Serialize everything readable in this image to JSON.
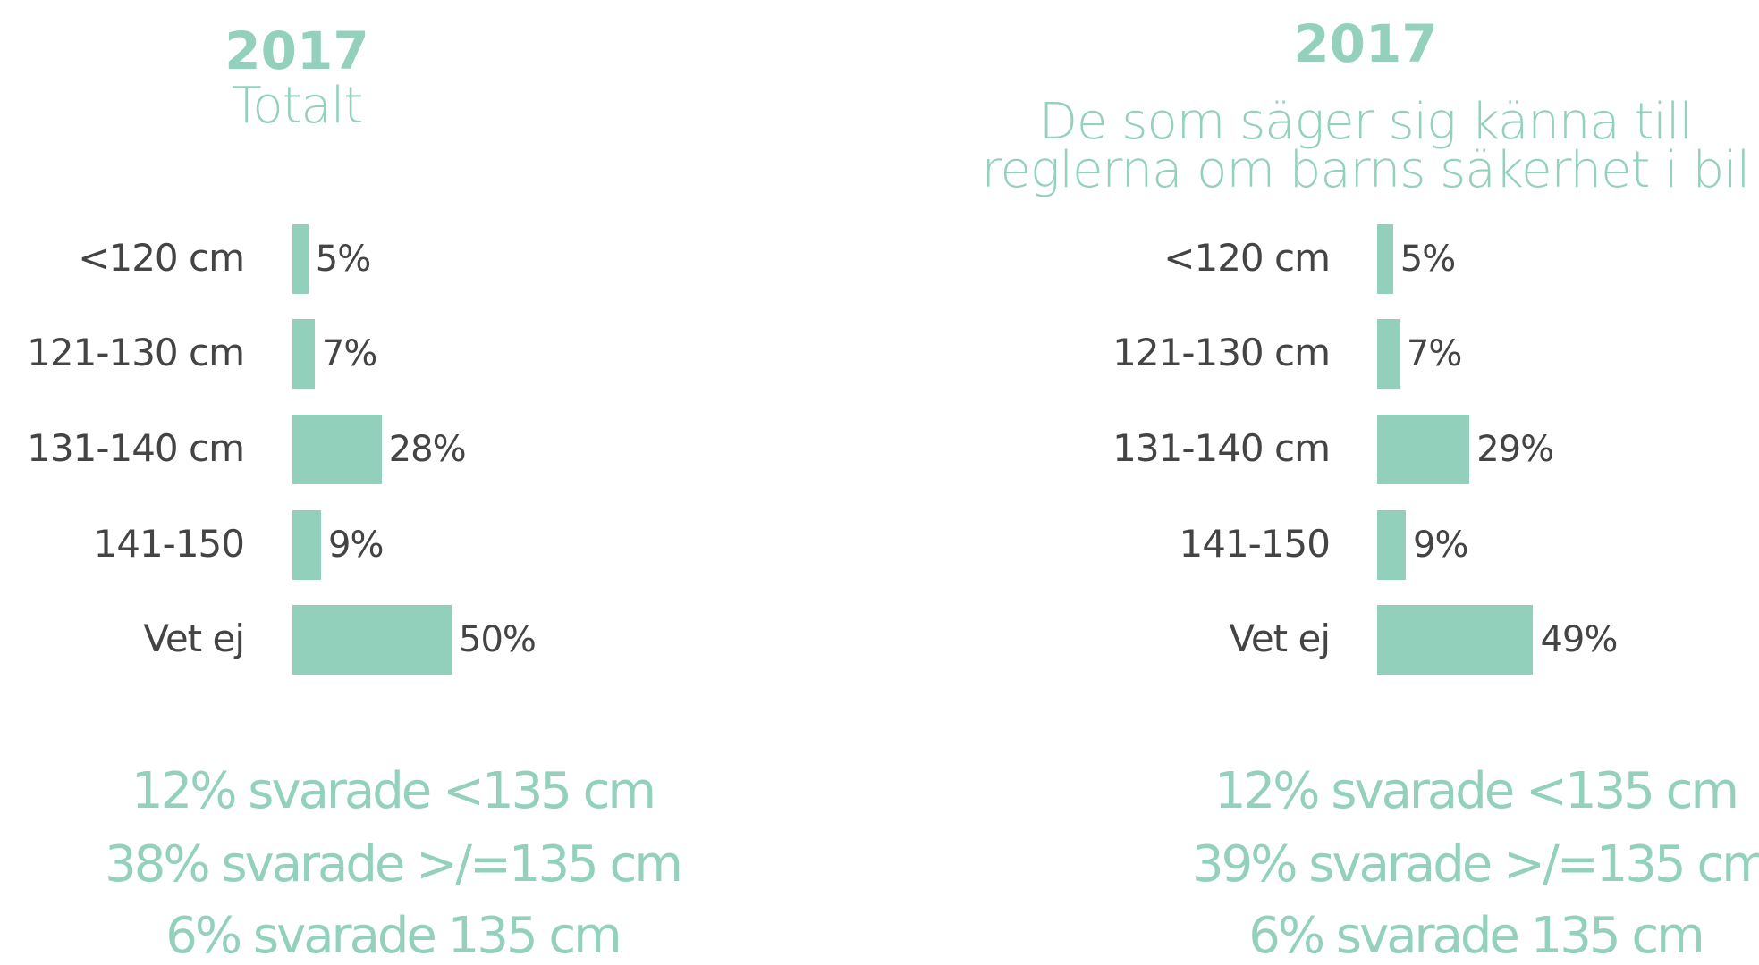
{
  "chart_data": [
    {
      "type": "bar",
      "orientation": "horizontal",
      "title": "2017",
      "subtitle": "Totalt",
      "categories": [
        "<120 cm",
        "121-130 cm",
        "131-140 cm",
        "141-150",
        "Vet ej"
      ],
      "values": [
        5,
        7,
        28,
        9,
        50
      ],
      "value_labels": [
        "5%",
        "7%",
        "28%",
        "9%",
        "50%"
      ],
      "color": "#93d0bb",
      "annotations": [
        "12% svarade <135 cm",
        "38% svarade >/=135 cm",
        "6% svarade 135 cm"
      ]
    },
    {
      "type": "bar",
      "orientation": "horizontal",
      "title": "2017",
      "subtitle": "De som säger sig känna till\nreglerna om barns säkerhet i bil",
      "categories": [
        "<120 cm",
        "121-130 cm",
        "131-140 cm",
        "141-150",
        "Vet ej"
      ],
      "values": [
        5,
        7,
        29,
        9,
        49
      ],
      "value_labels": [
        "5%",
        "7%",
        "29%",
        "9%",
        "49%"
      ],
      "color": "#93d0bb",
      "annotations": [
        "12% svarade <135 cm",
        "39% svarade >/=135 cm",
        "6% svarade 135 cm"
      ]
    }
  ]
}
